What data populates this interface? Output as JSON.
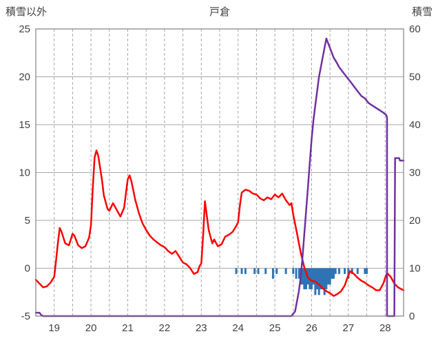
{
  "header": {
    "left_axis_title": "積雪以外",
    "title": "戸倉",
    "right_axis_title": "積雪"
  },
  "chart_data": {
    "type": "line",
    "title": "戸倉",
    "left_axis": {
      "label": "積雪以外",
      "min": -5,
      "max": 25,
      "tick_step": 5,
      "ticks": [
        -5,
        0,
        5,
        10,
        15,
        20,
        25
      ]
    },
    "right_axis": {
      "label": "積雪",
      "min": 0,
      "max": 60,
      "tick_step": 10,
      "ticks": [
        0,
        10,
        20,
        30,
        40,
        50,
        60
      ]
    },
    "x_axis": {
      "min": 18.5,
      "max": 28.5,
      "labels": [
        19,
        20,
        21,
        22,
        23,
        24,
        25,
        26,
        27,
        28
      ],
      "gridline_step": 0.5
    },
    "grid": {
      "h_color": "#A6A6A6",
      "v_color": "#A6A6A6",
      "v_dashed": true,
      "border_color": "#7F7F7F"
    },
    "text_color": "#404040",
    "legend": "none",
    "series": [
      {
        "name": "precipitation",
        "type": "bar",
        "axis": "left",
        "color": "#2E74B5",
        "baseline": 0,
        "bars": [
          [
            23.95,
            -0.6
          ],
          [
            24.1,
            -0.6
          ],
          [
            24.2,
            -0.6
          ],
          [
            24.45,
            -0.6
          ],
          [
            24.55,
            -0.6
          ],
          [
            24.75,
            -0.6
          ],
          [
            24.95,
            -1.1
          ],
          [
            25.05,
            -0.6
          ],
          [
            25.3,
            -0.6
          ],
          [
            25.5,
            -0.6
          ],
          [
            25.58,
            -1.1
          ],
          [
            25.66,
            -1.1
          ],
          [
            25.7,
            -1.7
          ],
          [
            25.75,
            -1.7
          ],
          [
            25.8,
            -2.2
          ],
          [
            25.85,
            -2.2
          ],
          [
            25.9,
            -1.7
          ],
          [
            25.95,
            -2.2
          ],
          [
            26.0,
            -2.2
          ],
          [
            26.05,
            -1.7
          ],
          [
            26.1,
            -2.8
          ],
          [
            26.15,
            -2.2
          ],
          [
            26.2,
            -2.8
          ],
          [
            26.25,
            -2.2
          ],
          [
            26.3,
            -2.2
          ],
          [
            26.35,
            -2.8
          ],
          [
            26.4,
            -2.2
          ],
          [
            26.45,
            -1.7
          ],
          [
            26.5,
            -1.7
          ],
          [
            26.55,
            -1.1
          ],
          [
            26.6,
            -1.1
          ],
          [
            26.65,
            -0.6
          ],
          [
            26.75,
            -0.6
          ],
          [
            26.9,
            -0.6
          ],
          [
            27.0,
            -1.1
          ],
          [
            27.1,
            -0.6
          ],
          [
            27.25,
            -0.6
          ],
          [
            27.45,
            -0.6
          ],
          [
            27.5,
            -0.6
          ]
        ]
      },
      {
        "name": "temperature",
        "type": "line",
        "axis": "left",
        "color": "#FF0000",
        "points": [
          [
            18.5,
            -1.2
          ],
          [
            18.6,
            -1.6
          ],
          [
            18.7,
            -2.0
          ],
          [
            18.8,
            -1.9
          ],
          [
            18.9,
            -1.5
          ],
          [
            19.0,
            -0.9
          ],
          [
            19.05,
            0.8
          ],
          [
            19.1,
            2.6
          ],
          [
            19.15,
            4.2
          ],
          [
            19.2,
            3.8
          ],
          [
            19.3,
            2.6
          ],
          [
            19.4,
            2.4
          ],
          [
            19.5,
            3.6
          ],
          [
            19.55,
            3.4
          ],
          [
            19.65,
            2.4
          ],
          [
            19.75,
            2.1
          ],
          [
            19.85,
            2.3
          ],
          [
            19.95,
            3.2
          ],
          [
            20.0,
            4.5
          ],
          [
            20.05,
            8.5
          ],
          [
            20.1,
            11.6
          ],
          [
            20.15,
            12.3
          ],
          [
            20.2,
            11.7
          ],
          [
            20.3,
            9.2
          ],
          [
            20.35,
            7.6
          ],
          [
            20.45,
            6.2
          ],
          [
            20.5,
            6.0
          ],
          [
            20.6,
            6.8
          ],
          [
            20.7,
            6.1
          ],
          [
            20.8,
            5.4
          ],
          [
            20.9,
            6.3
          ],
          [
            20.95,
            7.8
          ],
          [
            21.0,
            9.3
          ],
          [
            21.05,
            9.7
          ],
          [
            21.1,
            9.1
          ],
          [
            21.2,
            7.2
          ],
          [
            21.3,
            5.8
          ],
          [
            21.4,
            4.7
          ],
          [
            21.5,
            4.0
          ],
          [
            21.6,
            3.4
          ],
          [
            21.7,
            3.0
          ],
          [
            21.8,
            2.7
          ],
          [
            21.9,
            2.4
          ],
          [
            22.0,
            2.2
          ],
          [
            22.1,
            1.8
          ],
          [
            22.2,
            1.5
          ],
          [
            22.3,
            1.8
          ],
          [
            22.4,
            1.2
          ],
          [
            22.5,
            0.6
          ],
          [
            22.6,
            0.4
          ],
          [
            22.7,
            0.0
          ],
          [
            22.8,
            -0.6
          ],
          [
            22.9,
            -0.4
          ],
          [
            22.95,
            0.2
          ],
          [
            23.0,
            0.5
          ],
          [
            23.05,
            3.5
          ],
          [
            23.1,
            7.0
          ],
          [
            23.15,
            5.5
          ],
          [
            23.2,
            4.0
          ],
          [
            23.3,
            2.6
          ],
          [
            23.35,
            3.0
          ],
          [
            23.45,
            2.3
          ],
          [
            23.55,
            2.5
          ],
          [
            23.65,
            3.3
          ],
          [
            23.75,
            3.5
          ],
          [
            23.85,
            3.8
          ],
          [
            23.95,
            4.4
          ],
          [
            24.0,
            4.8
          ],
          [
            24.05,
            6.6
          ],
          [
            24.1,
            7.9
          ],
          [
            24.2,
            8.2
          ],
          [
            24.3,
            8.1
          ],
          [
            24.4,
            7.8
          ],
          [
            24.5,
            7.7
          ],
          [
            24.6,
            7.3
          ],
          [
            24.7,
            7.1
          ],
          [
            24.8,
            7.4
          ],
          [
            24.9,
            7.2
          ],
          [
            25.0,
            7.7
          ],
          [
            25.1,
            7.4
          ],
          [
            25.2,
            7.8
          ],
          [
            25.3,
            7.1
          ],
          [
            25.4,
            6.6
          ],
          [
            25.45,
            6.8
          ],
          [
            25.5,
            5.6
          ],
          [
            25.6,
            3.7
          ],
          [
            25.7,
            1.7
          ],
          [
            25.8,
            0.1
          ],
          [
            25.9,
            -1.0
          ],
          [
            26.0,
            -1.3
          ],
          [
            26.1,
            -1.4
          ],
          [
            26.2,
            -1.7
          ],
          [
            26.3,
            -2.1
          ],
          [
            26.4,
            -2.4
          ],
          [
            26.5,
            -2.6
          ],
          [
            26.6,
            -2.9
          ],
          [
            26.7,
            -2.7
          ],
          [
            26.8,
            -2.4
          ],
          [
            26.9,
            -1.8
          ],
          [
            27.0,
            -0.7
          ],
          [
            27.05,
            -0.3
          ],
          [
            27.15,
            -0.6
          ],
          [
            27.25,
            -1.0
          ],
          [
            27.35,
            -1.3
          ],
          [
            27.45,
            -1.5
          ],
          [
            27.55,
            -1.8
          ],
          [
            27.65,
            -2.0
          ],
          [
            27.75,
            -2.3
          ],
          [
            27.85,
            -2.3
          ],
          [
            27.95,
            -1.6
          ],
          [
            28.0,
            -1.0
          ],
          [
            28.05,
            -0.5
          ],
          [
            28.15,
            -0.9
          ],
          [
            28.25,
            -1.6
          ],
          [
            28.35,
            -2.0
          ],
          [
            28.45,
            -2.2
          ],
          [
            28.5,
            -2.3
          ]
        ]
      },
      {
        "name": "snow-depth",
        "type": "line",
        "axis": "right",
        "color": "#7030A0",
        "points": [
          [
            18.5,
            0.7
          ],
          [
            18.6,
            0.7
          ],
          [
            18.65,
            0.2
          ],
          [
            18.7,
            0.0
          ],
          [
            25.45,
            0.0
          ],
          [
            25.55,
            1.0
          ],
          [
            25.6,
            3.0
          ],
          [
            25.65,
            5.0
          ],
          [
            25.7,
            8.0
          ],
          [
            25.75,
            12.0
          ],
          [
            25.8,
            17.0
          ],
          [
            25.85,
            22.0
          ],
          [
            25.9,
            27.0
          ],
          [
            25.95,
            32.0
          ],
          [
            26.0,
            37.0
          ],
          [
            26.05,
            41.0
          ],
          [
            26.1,
            44.0
          ],
          [
            26.15,
            47.0
          ],
          [
            26.2,
            50.0
          ],
          [
            26.25,
            52.0
          ],
          [
            26.3,
            54.0
          ],
          [
            26.35,
            56.0
          ],
          [
            26.4,
            58.0
          ],
          [
            26.45,
            57.0
          ],
          [
            26.5,
            56.0
          ],
          [
            26.55,
            55.0
          ],
          [
            26.6,
            54.0
          ],
          [
            26.68,
            53.0
          ],
          [
            26.75,
            52.0
          ],
          [
            26.85,
            51.0
          ],
          [
            26.95,
            50.0
          ],
          [
            27.05,
            49.0
          ],
          [
            27.15,
            48.0
          ],
          [
            27.25,
            47.0
          ],
          [
            27.35,
            46.0
          ],
          [
            27.45,
            45.5
          ],
          [
            27.55,
            44.5
          ],
          [
            27.65,
            44.0
          ],
          [
            27.75,
            43.5
          ],
          [
            27.85,
            43.0
          ],
          [
            27.95,
            42.5
          ],
          [
            28.03,
            42.0
          ],
          [
            28.05,
            41.5
          ],
          [
            28.05,
            0.0
          ],
          [
            28.25,
            0.0
          ],
          [
            28.27,
            33.0
          ],
          [
            28.38,
            33.0
          ],
          [
            28.4,
            32.5
          ],
          [
            28.5,
            32.5
          ]
        ]
      }
    ]
  }
}
